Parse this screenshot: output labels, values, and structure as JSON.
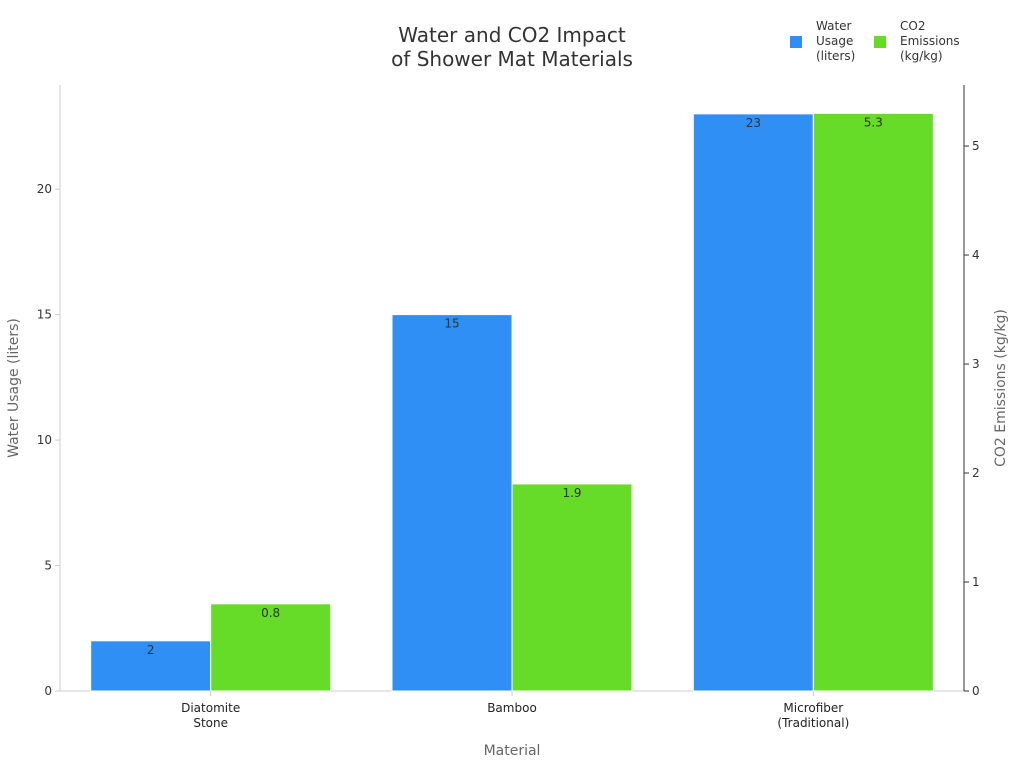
{
  "chart_data": {
    "type": "bar",
    "title": "Water and CO2 Impact\nof Shower Mat Materials",
    "xlabel": "Material",
    "ylabel": "Water Usage (liters)",
    "ylabel_right": "CO2 Emissions (kg/kg)",
    "categories": [
      "Diatomite\nStone",
      "Bamboo",
      "Microfiber\n(Traditional)"
    ],
    "series": [
      {
        "name": "Water\nUsage\n(liters)",
        "axis": "left",
        "color": "#2f8ff5",
        "values": [
          2,
          15,
          23
        ],
        "labels": [
          "2",
          "15",
          "23"
        ]
      },
      {
        "name": "CO2\nEmissions\n(kg/kg)",
        "axis": "right",
        "color": "#66dc28",
        "values": [
          0.8,
          1.9,
          5.3
        ],
        "labels": [
          "0.8",
          "1.9",
          "5.3"
        ]
      }
    ],
    "ylim": [
      0,
      24.15
    ],
    "ylim_right": [
      0,
      5.56
    ],
    "yticks": [
      "0",
      "5",
      "10",
      "15",
      "20"
    ],
    "yticks_right": [
      "0",
      "1",
      "2",
      "3",
      "4",
      "5"
    ],
    "grid": false,
    "legend_position": "top-right"
  }
}
